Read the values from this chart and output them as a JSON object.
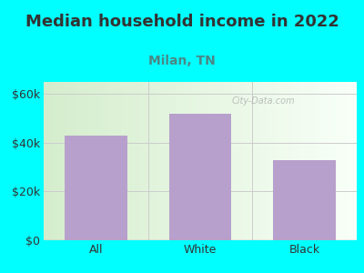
{
  "title": "Median household income in 2022",
  "subtitle": "Milan, TN",
  "categories": [
    "All",
    "White",
    "Black"
  ],
  "values": [
    43000,
    52000,
    33000
  ],
  "bar_color": "#b8a0cc",
  "title_color": "#333333",
  "subtitle_color": "#4a8888",
  "bg_color": "#00ffff",
  "plot_bg_gradient_left": "#d4edcc",
  "plot_bg_gradient_right": "#f8fff8",
  "yticks": [
    0,
    20000,
    40000,
    60000
  ],
  "ytick_labels": [
    "$0",
    "$20k",
    "$40k",
    "$60k"
  ],
  "ylim": [
    0,
    65000
  ],
  "watermark": "City-Data.com",
  "title_fontsize": 13,
  "subtitle_fontsize": 10,
  "tick_fontsize": 9,
  "axis_color": "#aaaaaa",
  "grid_color": "#cccccc"
}
